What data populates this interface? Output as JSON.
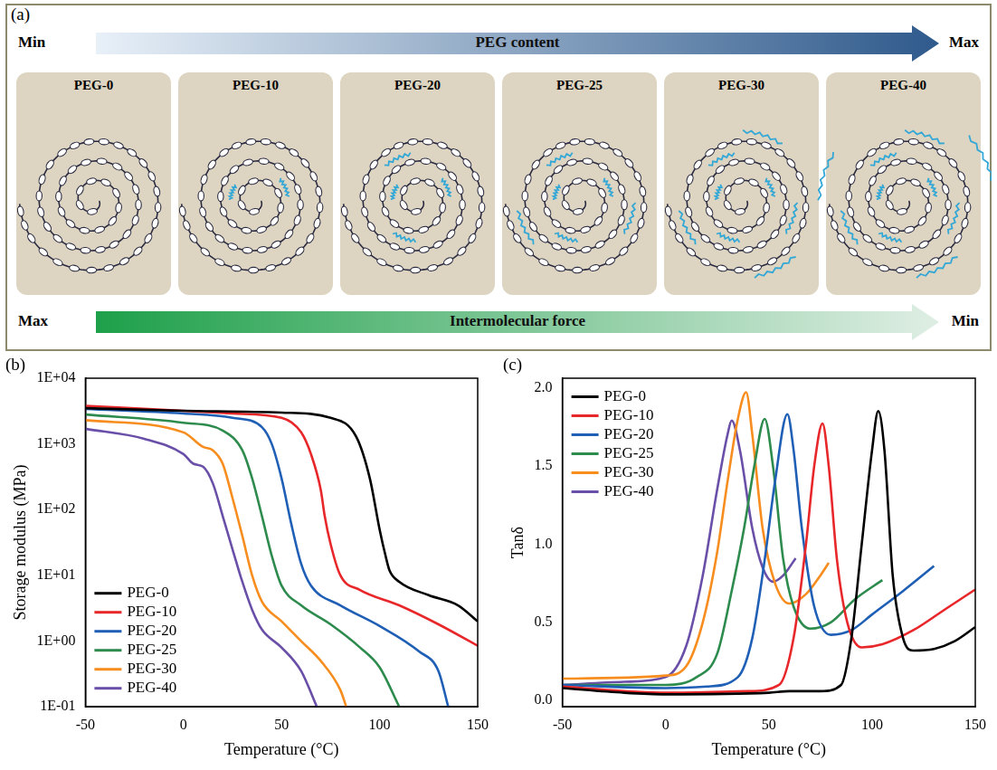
{
  "diagram": {
    "label": "(a)",
    "top_arrow": {
      "start": "Min",
      "text": "PEG content",
      "end": "Max"
    },
    "panels": [
      "PEG-0",
      "PEG-10",
      "PEG-20",
      "PEG-25",
      "PEG-30",
      "PEG-40"
    ],
    "bottom_arrow": {
      "start": "Max",
      "text": "Intermolecular force",
      "end": "Min"
    }
  },
  "chart_data": [
    {
      "type": "line",
      "panel": "(b)",
      "x_label": "Temperature (°C)",
      "y_label": "Storage modulus (MPa)",
      "log": "y",
      "grid": false,
      "legend": "lower left",
      "xlim": [
        -50,
        150
      ],
      "xticks": [
        -50,
        0,
        50,
        100,
        150
      ],
      "ylim": [
        0.1,
        10000
      ],
      "yticks": [
        {
          "value": 0.1,
          "label": "1E-01"
        },
        {
          "value": 1,
          "label": "1E+00"
        },
        {
          "value": 10,
          "label": "1E+01"
        },
        {
          "value": 100,
          "label": "1E+02"
        },
        {
          "value": 1000,
          "label": "1E+03"
        },
        {
          "value": 10000,
          "label": "1E+04"
        }
      ],
      "series": [
        {
          "name": "PEG-0",
          "color": "#000000",
          "x": [
            -50,
            0,
            50,
            75,
            88,
            95,
            100,
            103,
            105,
            110,
            125,
            140,
            150
          ],
          "values": [
            3500,
            3200,
            3000,
            2500,
            1300,
            300,
            50,
            20,
            12,
            8,
            5,
            3.5,
            2
          ]
        },
        {
          "name": "PEG-10",
          "color": "#e8272a",
          "x": [
            -50,
            0,
            25,
            50,
            60,
            65,
            70,
            72,
            75,
            80,
            90,
            110,
            130,
            150
          ],
          "values": [
            3800,
            3200,
            2900,
            2500,
            1500,
            700,
            200,
            80,
            30,
            10,
            6,
            3.5,
            1.8,
            0.85
          ]
        },
        {
          "name": "PEG-20",
          "color": "#1f5fb5",
          "x": [
            -50,
            0,
            25,
            40,
            45,
            50,
            55,
            60,
            65,
            80,
            100,
            120,
            130,
            135
          ],
          "values": [
            3400,
            2900,
            2500,
            1800,
            1000,
            300,
            60,
            15,
            7,
            3.5,
            1.7,
            0.7,
            0.35,
            0.1
          ]
        },
        {
          "name": "PEG-25",
          "color": "#2e8b4e",
          "x": [
            -50,
            0,
            20,
            30,
            35,
            40,
            45,
            50,
            60,
            75,
            90,
            100,
            110
          ],
          "values": [
            2800,
            2100,
            1600,
            800,
            300,
            80,
            20,
            7,
            3.5,
            1.8,
            0.8,
            0.4,
            0.1
          ]
        },
        {
          "name": "PEG-30",
          "color": "#f78d1e",
          "x": [
            -50,
            0,
            10,
            15,
            20,
            25,
            30,
            35,
            40,
            50,
            60,
            70,
            80,
            83
          ],
          "values": [
            2300,
            1500,
            900,
            800,
            500,
            150,
            40,
            10,
            4,
            2,
            1,
            0.5,
            0.18,
            0.1
          ]
        },
        {
          "name": "PEG-40",
          "color": "#6a4fa8",
          "x": [
            -50,
            -20,
            0,
            5,
            10,
            15,
            20,
            25,
            30,
            35,
            40,
            50,
            60,
            68
          ],
          "values": [
            1700,
            1200,
            700,
            500,
            450,
            250,
            80,
            25,
            8,
            3,
            1.5,
            0.8,
            0.35,
            0.1
          ]
        }
      ]
    },
    {
      "type": "line",
      "panel": "(c)",
      "x_label": "Temperature (°C)",
      "y_label": "Tanδ",
      "grid": false,
      "legend": "upper left",
      "xlim": [
        -50,
        150
      ],
      "xticks": [
        -50,
        0,
        50,
        100,
        150
      ],
      "ylim": [
        -0.04,
        2.06
      ],
      "yticks": [
        {
          "value": 0,
          "label": "0.0"
        },
        {
          "value": 0.5,
          "label": "0.5"
        },
        {
          "value": 1,
          "label": "1.0"
        },
        {
          "value": 1.5,
          "label": "1.5"
        },
        {
          "value": 2,
          "label": "2.0"
        }
      ],
      "series": [
        {
          "name": "PEG-0",
          "color": "#000000",
          "x": [
            -50,
            -20,
            0,
            50,
            60,
            75,
            85,
            90,
            95,
            100,
            103,
            106,
            110,
            115,
            120,
            130,
            140,
            150
          ],
          "values": [
            0.08,
            0.05,
            0.04,
            0.05,
            0.06,
            0.06,
            0.1,
            0.4,
            1.0,
            1.6,
            1.85,
            1.6,
            0.8,
            0.4,
            0.32,
            0.33,
            0.38,
            0.47
          ]
        },
        {
          "name": "PEG-10",
          "color": "#e8272a",
          "x": [
            -50,
            0,
            40,
            55,
            62,
            68,
            72,
            76,
            79,
            83,
            88,
            95,
            105,
            120,
            135,
            150
          ],
          "values": [
            0.09,
            0.05,
            0.06,
            0.1,
            0.4,
            1.0,
            1.5,
            1.77,
            1.5,
            0.9,
            0.5,
            0.34,
            0.36,
            0.45,
            0.58,
            0.71
          ]
        },
        {
          "name": "PEG-20",
          "color": "#1f5fb5",
          "x": [
            -50,
            0,
            20,
            35,
            42,
            48,
            53,
            59,
            62,
            66,
            72,
            80,
            90,
            100,
            115,
            130
          ],
          "values": [
            0.1,
            0.08,
            0.09,
            0.15,
            0.4,
            0.9,
            1.4,
            1.83,
            1.6,
            1.1,
            0.6,
            0.42,
            0.45,
            0.55,
            0.7,
            0.86
          ]
        },
        {
          "name": "PEG-25",
          "color": "#2e8b4e",
          "x": [
            -50,
            0,
            15,
            25,
            32,
            38,
            43,
            48,
            52,
            57,
            62,
            70,
            80,
            92,
            105
          ],
          "values": [
            0.1,
            0.1,
            0.15,
            0.3,
            0.7,
            1.1,
            1.5,
            1.8,
            1.5,
            0.9,
            0.6,
            0.46,
            0.5,
            0.65,
            0.77
          ]
        },
        {
          "name": "PEG-30",
          "color": "#f78d1e",
          "x": [
            -50,
            0,
            10,
            18,
            25,
            30,
            35,
            39,
            42,
            47,
            53,
            60,
            68,
            75,
            79
          ],
          "values": [
            0.14,
            0.16,
            0.22,
            0.5,
            0.95,
            1.4,
            1.8,
            1.97,
            1.7,
            1.1,
            0.75,
            0.62,
            0.68,
            0.8,
            0.88
          ]
        },
        {
          "name": "PEG-40",
          "color": "#6a4fa8",
          "x": [
            -50,
            -20,
            0,
            10,
            18,
            25,
            30,
            32,
            36,
            42,
            47,
            52,
            57,
            63
          ],
          "values": [
            0.1,
            0.12,
            0.15,
            0.35,
            0.8,
            1.35,
            1.7,
            1.79,
            1.6,
            1.1,
            0.85,
            0.76,
            0.8,
            0.91
          ]
        }
      ]
    }
  ]
}
